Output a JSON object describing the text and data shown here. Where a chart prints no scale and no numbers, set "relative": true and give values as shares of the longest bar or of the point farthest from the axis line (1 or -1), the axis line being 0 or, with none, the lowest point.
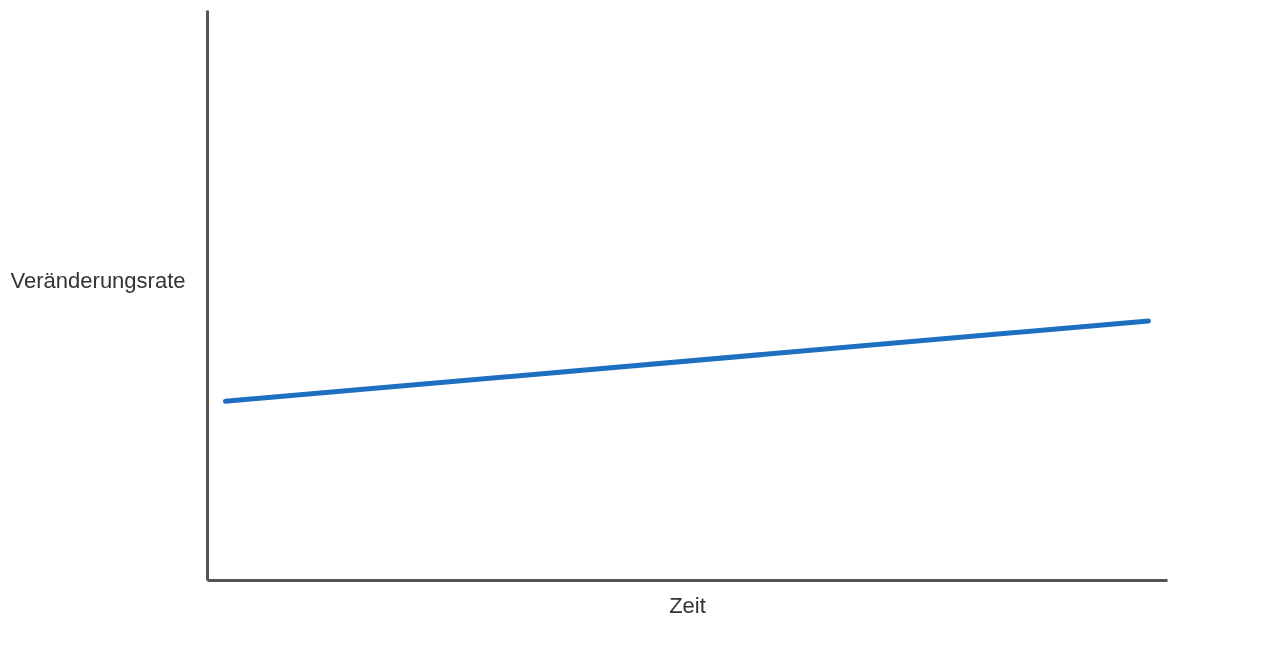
{
  "chart_data": {
    "type": "line",
    "xlabel": "Zeit",
    "ylabel": "Veränderungsrate",
    "relative": true,
    "categories": [
      null,
      null
    ],
    "series": [
      {
        "color": "#1f6fc0",
        "values": [
          0.69,
          1
        ]
      }
    ]
  }
}
